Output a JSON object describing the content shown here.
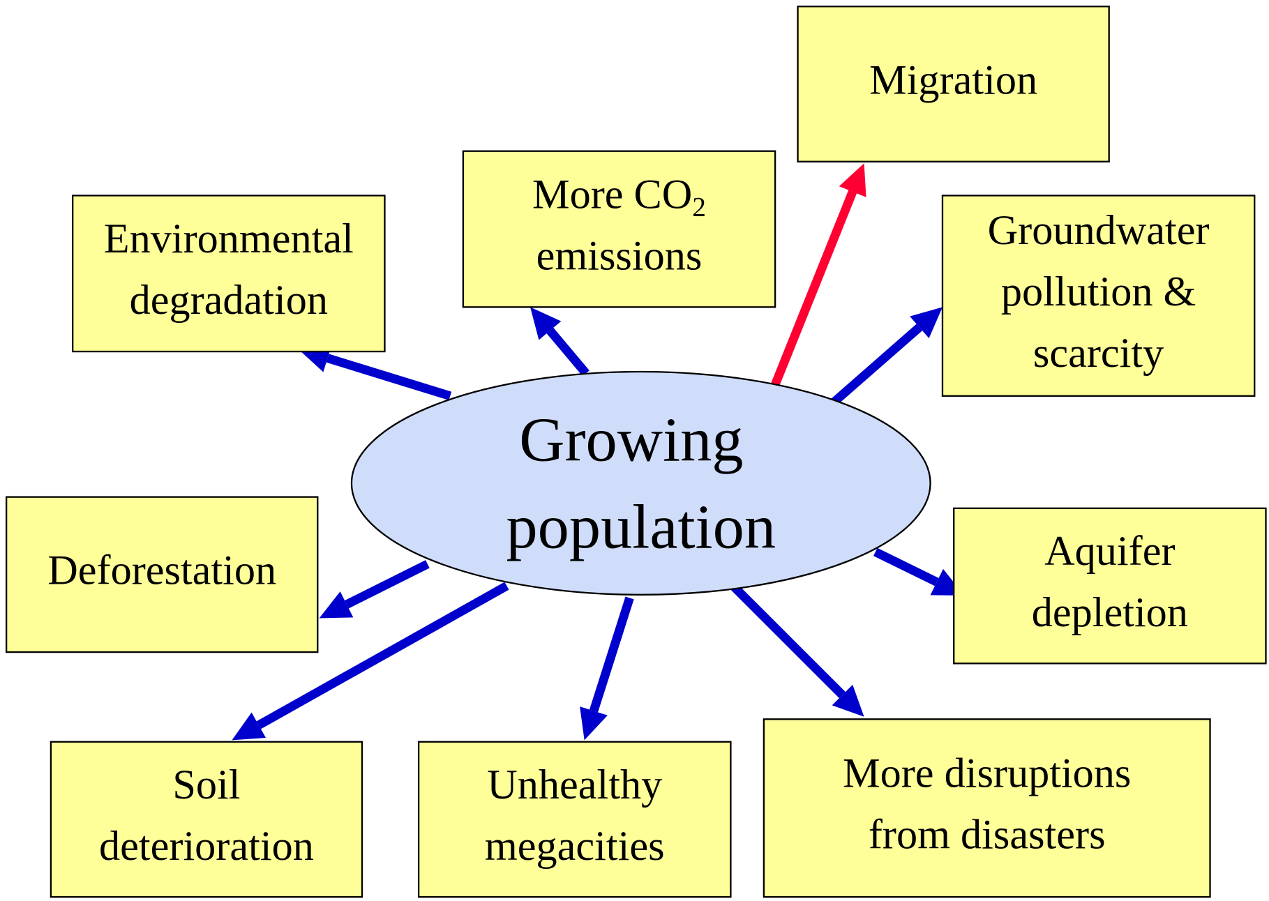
{
  "center": {
    "lines": [
      "Growing",
      "population"
    ]
  },
  "nodes": [
    {
      "lines": [
        "Migration"
      ]
    },
    {
      "lines": [
        "More CO",
        "emissions"
      ],
      "subscript": "2"
    },
    {
      "lines": [
        "Environmental",
        "degradation"
      ]
    },
    {
      "lines": [
        "Groundwater",
        "pollution &",
        "scarcity"
      ]
    },
    {
      "lines": [
        "Deforestation"
      ]
    },
    {
      "lines": [
        "Aquifer",
        "depletion"
      ]
    },
    {
      "lines": [
        "Soil",
        "deterioration"
      ]
    },
    {
      "lines": [
        "Unhealthy",
        "megacities"
      ]
    },
    {
      "lines": [
        "More disruptions",
        "from disasters"
      ]
    }
  ]
}
